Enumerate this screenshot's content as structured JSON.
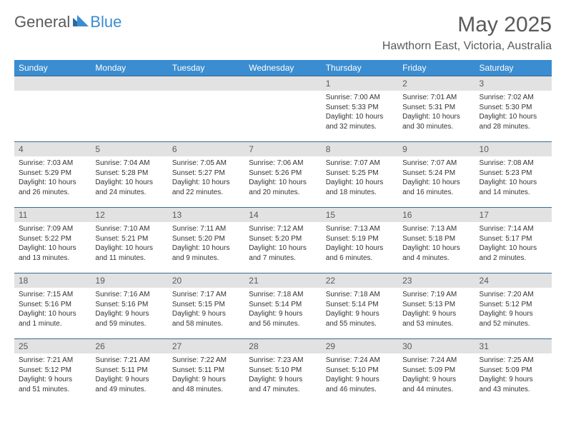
{
  "logo": {
    "text1": "General",
    "text2": "Blue"
  },
  "title": "May 2025",
  "location": "Hawthorn East, Victoria, Australia",
  "colors": {
    "header_bg": "#3a8dd0",
    "band_bg": "#e2e2e2",
    "rule": "#3a6a8f",
    "text_gray": "#5a5a5a"
  },
  "day_names": [
    "Sunday",
    "Monday",
    "Tuesday",
    "Wednesday",
    "Thursday",
    "Friday",
    "Saturday"
  ],
  "weeks": [
    [
      null,
      null,
      null,
      null,
      {
        "n": "1",
        "sr": "Sunrise: 7:00 AM",
        "ss": "Sunset: 5:33 PM",
        "d1": "Daylight: 10 hours",
        "d2": "and 32 minutes."
      },
      {
        "n": "2",
        "sr": "Sunrise: 7:01 AM",
        "ss": "Sunset: 5:31 PM",
        "d1": "Daylight: 10 hours",
        "d2": "and 30 minutes."
      },
      {
        "n": "3",
        "sr": "Sunrise: 7:02 AM",
        "ss": "Sunset: 5:30 PM",
        "d1": "Daylight: 10 hours",
        "d2": "and 28 minutes."
      }
    ],
    [
      {
        "n": "4",
        "sr": "Sunrise: 7:03 AM",
        "ss": "Sunset: 5:29 PM",
        "d1": "Daylight: 10 hours",
        "d2": "and 26 minutes."
      },
      {
        "n": "5",
        "sr": "Sunrise: 7:04 AM",
        "ss": "Sunset: 5:28 PM",
        "d1": "Daylight: 10 hours",
        "d2": "and 24 minutes."
      },
      {
        "n": "6",
        "sr": "Sunrise: 7:05 AM",
        "ss": "Sunset: 5:27 PM",
        "d1": "Daylight: 10 hours",
        "d2": "and 22 minutes."
      },
      {
        "n": "7",
        "sr": "Sunrise: 7:06 AM",
        "ss": "Sunset: 5:26 PM",
        "d1": "Daylight: 10 hours",
        "d2": "and 20 minutes."
      },
      {
        "n": "8",
        "sr": "Sunrise: 7:07 AM",
        "ss": "Sunset: 5:25 PM",
        "d1": "Daylight: 10 hours",
        "d2": "and 18 minutes."
      },
      {
        "n": "9",
        "sr": "Sunrise: 7:07 AM",
        "ss": "Sunset: 5:24 PM",
        "d1": "Daylight: 10 hours",
        "d2": "and 16 minutes."
      },
      {
        "n": "10",
        "sr": "Sunrise: 7:08 AM",
        "ss": "Sunset: 5:23 PM",
        "d1": "Daylight: 10 hours",
        "d2": "and 14 minutes."
      }
    ],
    [
      {
        "n": "11",
        "sr": "Sunrise: 7:09 AM",
        "ss": "Sunset: 5:22 PM",
        "d1": "Daylight: 10 hours",
        "d2": "and 13 minutes."
      },
      {
        "n": "12",
        "sr": "Sunrise: 7:10 AM",
        "ss": "Sunset: 5:21 PM",
        "d1": "Daylight: 10 hours",
        "d2": "and 11 minutes."
      },
      {
        "n": "13",
        "sr": "Sunrise: 7:11 AM",
        "ss": "Sunset: 5:20 PM",
        "d1": "Daylight: 10 hours",
        "d2": "and 9 minutes."
      },
      {
        "n": "14",
        "sr": "Sunrise: 7:12 AM",
        "ss": "Sunset: 5:20 PM",
        "d1": "Daylight: 10 hours",
        "d2": "and 7 minutes."
      },
      {
        "n": "15",
        "sr": "Sunrise: 7:13 AM",
        "ss": "Sunset: 5:19 PM",
        "d1": "Daylight: 10 hours",
        "d2": "and 6 minutes."
      },
      {
        "n": "16",
        "sr": "Sunrise: 7:13 AM",
        "ss": "Sunset: 5:18 PM",
        "d1": "Daylight: 10 hours",
        "d2": "and 4 minutes."
      },
      {
        "n": "17",
        "sr": "Sunrise: 7:14 AM",
        "ss": "Sunset: 5:17 PM",
        "d1": "Daylight: 10 hours",
        "d2": "and 2 minutes."
      }
    ],
    [
      {
        "n": "18",
        "sr": "Sunrise: 7:15 AM",
        "ss": "Sunset: 5:16 PM",
        "d1": "Daylight: 10 hours",
        "d2": "and 1 minute."
      },
      {
        "n": "19",
        "sr": "Sunrise: 7:16 AM",
        "ss": "Sunset: 5:16 PM",
        "d1": "Daylight: 9 hours",
        "d2": "and 59 minutes."
      },
      {
        "n": "20",
        "sr": "Sunrise: 7:17 AM",
        "ss": "Sunset: 5:15 PM",
        "d1": "Daylight: 9 hours",
        "d2": "and 58 minutes."
      },
      {
        "n": "21",
        "sr": "Sunrise: 7:18 AM",
        "ss": "Sunset: 5:14 PM",
        "d1": "Daylight: 9 hours",
        "d2": "and 56 minutes."
      },
      {
        "n": "22",
        "sr": "Sunrise: 7:18 AM",
        "ss": "Sunset: 5:14 PM",
        "d1": "Daylight: 9 hours",
        "d2": "and 55 minutes."
      },
      {
        "n": "23",
        "sr": "Sunrise: 7:19 AM",
        "ss": "Sunset: 5:13 PM",
        "d1": "Daylight: 9 hours",
        "d2": "and 53 minutes."
      },
      {
        "n": "24",
        "sr": "Sunrise: 7:20 AM",
        "ss": "Sunset: 5:12 PM",
        "d1": "Daylight: 9 hours",
        "d2": "and 52 minutes."
      }
    ],
    [
      {
        "n": "25",
        "sr": "Sunrise: 7:21 AM",
        "ss": "Sunset: 5:12 PM",
        "d1": "Daylight: 9 hours",
        "d2": "and 51 minutes."
      },
      {
        "n": "26",
        "sr": "Sunrise: 7:21 AM",
        "ss": "Sunset: 5:11 PM",
        "d1": "Daylight: 9 hours",
        "d2": "and 49 minutes."
      },
      {
        "n": "27",
        "sr": "Sunrise: 7:22 AM",
        "ss": "Sunset: 5:11 PM",
        "d1": "Daylight: 9 hours",
        "d2": "and 48 minutes."
      },
      {
        "n": "28",
        "sr": "Sunrise: 7:23 AM",
        "ss": "Sunset: 5:10 PM",
        "d1": "Daylight: 9 hours",
        "d2": "and 47 minutes."
      },
      {
        "n": "29",
        "sr": "Sunrise: 7:24 AM",
        "ss": "Sunset: 5:10 PM",
        "d1": "Daylight: 9 hours",
        "d2": "and 46 minutes."
      },
      {
        "n": "30",
        "sr": "Sunrise: 7:24 AM",
        "ss": "Sunset: 5:09 PM",
        "d1": "Daylight: 9 hours",
        "d2": "and 44 minutes."
      },
      {
        "n": "31",
        "sr": "Sunrise: 7:25 AM",
        "ss": "Sunset: 5:09 PM",
        "d1": "Daylight: 9 hours",
        "d2": "and 43 minutes."
      }
    ]
  ]
}
